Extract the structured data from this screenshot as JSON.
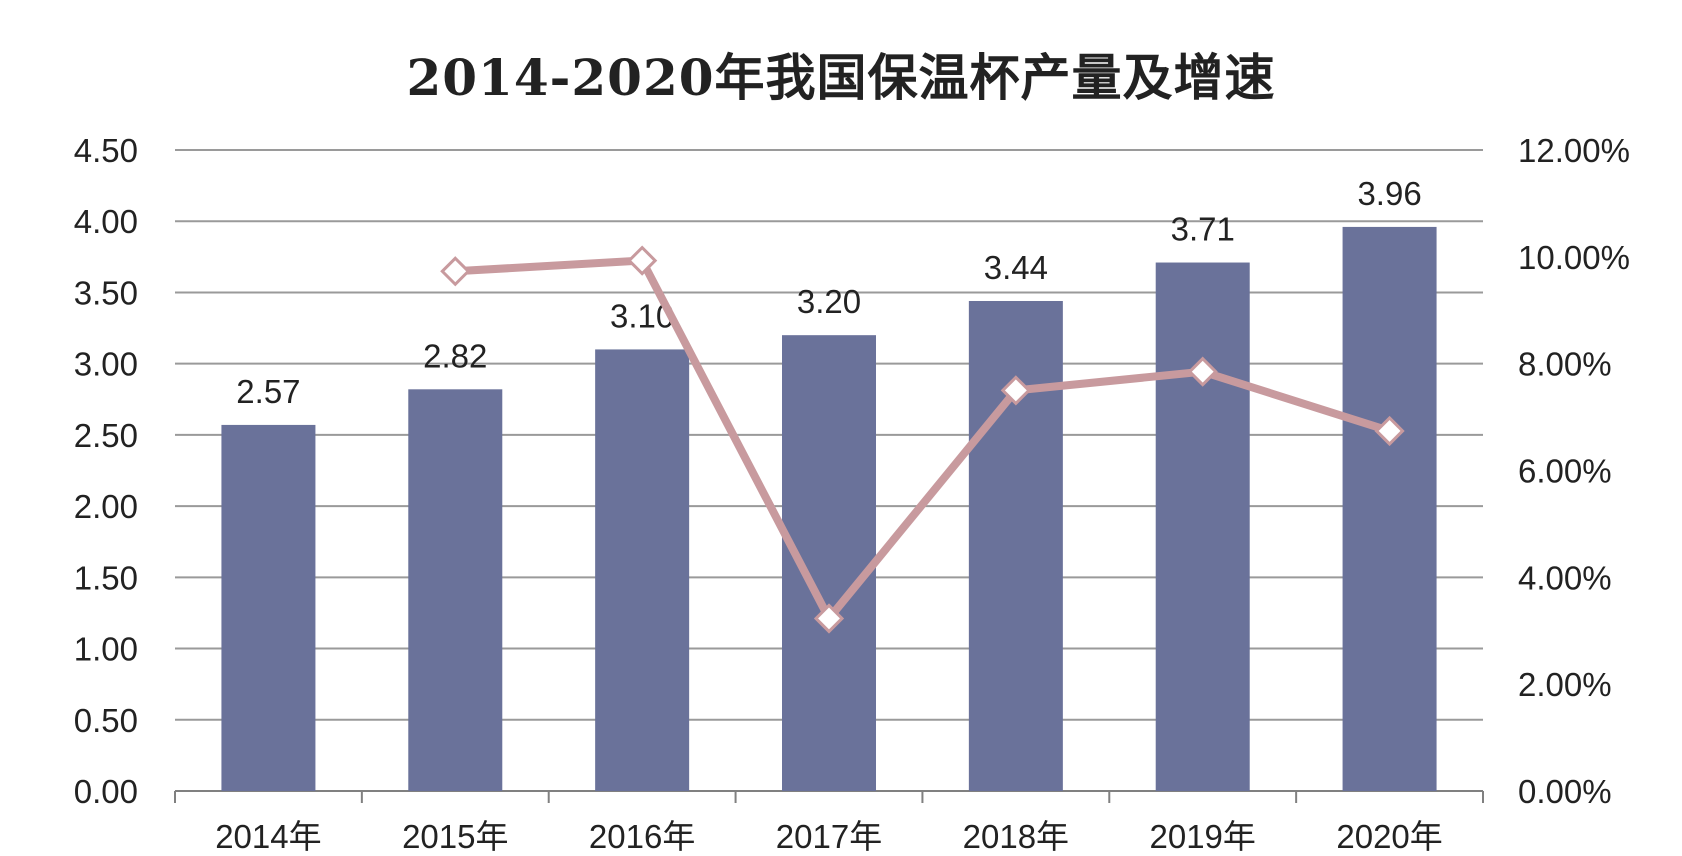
{
  "chart_data": {
    "type": "bar",
    "title": "2014-2020年我国保温杯产量及增速",
    "categories": [
      "2014年",
      "2015年",
      "2016年",
      "2017年",
      "2018年",
      "2019年",
      "2020年"
    ],
    "series": [
      {
        "type": "bar",
        "axis": "left",
        "values": [
          2.57,
          2.82,
          3.1,
          3.2,
          3.44,
          3.71,
          3.96
        ],
        "data_labels": [
          "2.57",
          "2.82",
          "3.10",
          "3.20",
          "3.44",
          "3.71",
          "3.96"
        ],
        "color": "#6a729a"
      },
      {
        "type": "line",
        "axis": "right",
        "values": [
          null,
          9.73,
          9.93,
          3.23,
          7.5,
          7.85,
          6.74
        ],
        "unit": "%",
        "color": "#c89a9e",
        "marker": "diamond"
      }
    ],
    "y_left": {
      "ylim": [
        0,
        4.5
      ],
      "ticks": [
        "0.00",
        "0.50",
        "1.00",
        "1.50",
        "2.00",
        "2.50",
        "3.00",
        "3.50",
        "4.00",
        "4.50"
      ]
    },
    "y_right": {
      "ylim": [
        0,
        12
      ],
      "ticks": [
        "0.00%",
        "2.00%",
        "4.00%",
        "6.00%",
        "8.00%",
        "10.00%",
        "12.00%"
      ]
    },
    "grid": true,
    "legend": "none",
    "colors": {
      "bar": "#6a729a",
      "line": "#c89a9e",
      "grid": "#9a9a9a",
      "axis": "#808080",
      "text": "#222222"
    }
  }
}
